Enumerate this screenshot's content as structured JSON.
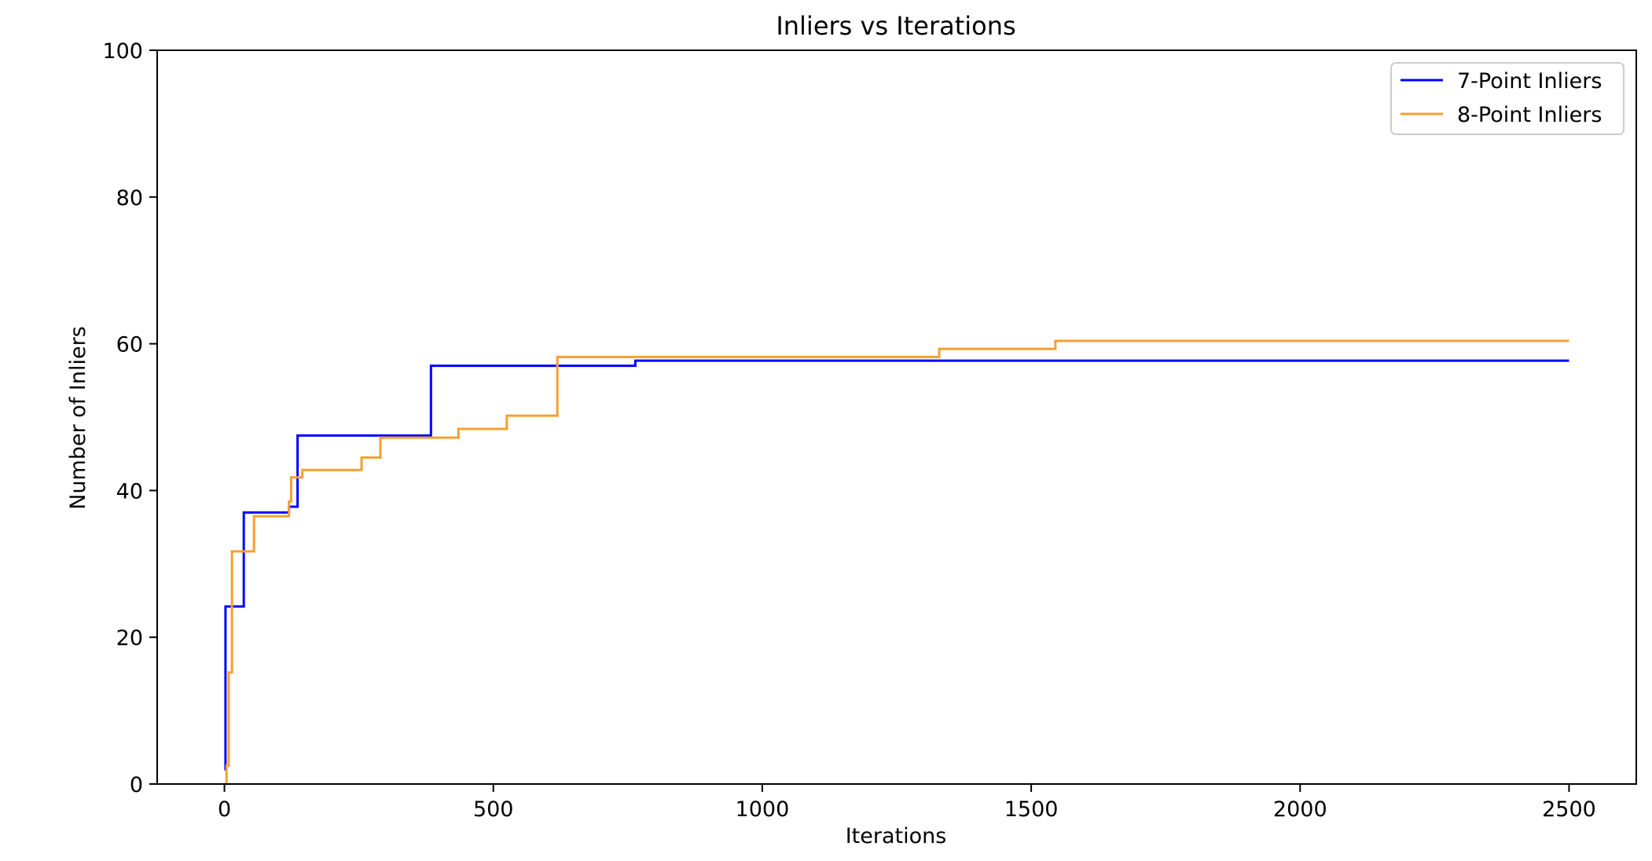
{
  "chart_data": {
    "type": "line",
    "title": "Inliers vs Iterations",
    "xlabel": "Iterations",
    "ylabel": "Number of Inliers",
    "xlim": [
      -125,
      2625
    ],
    "ylim": [
      0,
      100
    ],
    "xticks": [
      0,
      500,
      1000,
      1500,
      2000,
      2500
    ],
    "yticks": [
      0,
      20,
      40,
      60,
      80,
      100
    ],
    "grid": false,
    "legend": "top-right",
    "step": "post",
    "series": [
      {
        "name": "7-Point Inliers",
        "color": "#0000ff",
        "points": [
          [
            0,
            2
          ],
          [
            2,
            24.2
          ],
          [
            36,
            37
          ],
          [
            120,
            37.8
          ],
          [
            136,
            47.5
          ],
          [
            384,
            57
          ],
          [
            764,
            57.7
          ],
          [
            2500,
            57.7
          ]
        ]
      },
      {
        "name": "8-Point Inliers",
        "color": "#f5a030",
        "points": [
          [
            0,
            0
          ],
          [
            4,
            2.5
          ],
          [
            8,
            15.2
          ],
          [
            14,
            31.7
          ],
          [
            55,
            36.5
          ],
          [
            120,
            38.5
          ],
          [
            124,
            41.8
          ],
          [
            145,
            42.8
          ],
          [
            255,
            44.5
          ],
          [
            290,
            47.2
          ],
          [
            435,
            48.4
          ],
          [
            525,
            50.2
          ],
          [
            619,
            58.2
          ],
          [
            1329,
            59.3
          ],
          [
            1545,
            60.4
          ],
          [
            2500,
            60.4
          ]
        ]
      }
    ]
  }
}
